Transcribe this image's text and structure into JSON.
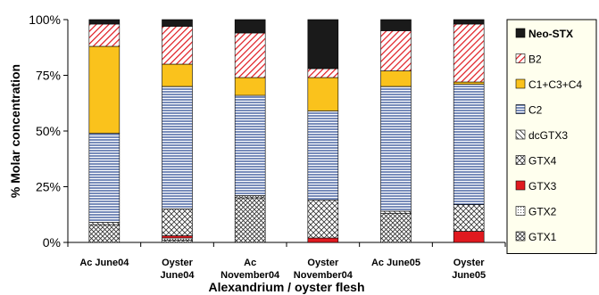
{
  "chart_data": {
    "type": "bar",
    "stacked": true,
    "xlabel": "Alexandrium / oyster flesh",
    "ylabel": "% Molar concentration",
    "ylim": [
      0,
      100
    ],
    "yticks": [
      "0%",
      "25%",
      "50%",
      "75%",
      "100%"
    ],
    "grid": false,
    "legend_position": "right",
    "categories": [
      [
        "Ac June04"
      ],
      [
        "Oyster",
        "June04"
      ],
      [
        "Ac",
        "November04"
      ],
      [
        "Oyster",
        "November04"
      ],
      [
        "Ac June05"
      ],
      [
        "Oyster",
        "June05"
      ]
    ],
    "series": [
      {
        "name": "GTX1",
        "pattern": "crosshatch-dense",
        "color": "#000000",
        "values": [
          8,
          1,
          20,
          0,
          13,
          0
        ]
      },
      {
        "name": "GTX2",
        "pattern": "dots",
        "color": "#000000",
        "values": [
          0,
          1,
          0,
          0,
          0,
          0
        ]
      },
      {
        "name": "GTX3",
        "pattern": "solid",
        "color": "#e0191f",
        "values": [
          0,
          1,
          0,
          2,
          0,
          5
        ]
      },
      {
        "name": "GTX4",
        "pattern": "crosshatch",
        "color": "#000000",
        "values": [
          0,
          12,
          1,
          17,
          0,
          12
        ]
      },
      {
        "name": "dcGTX3",
        "pattern": "diagonal",
        "color": "#000000",
        "values": [
          1,
          0,
          0,
          0,
          1,
          0
        ]
      },
      {
        "name": "C2",
        "pattern": "horizontal-lines",
        "color": "#1f3f8c",
        "values": [
          40,
          55,
          45,
          40,
          56,
          54
        ]
      },
      {
        "name": "C1+C3+C4",
        "pattern": "solid",
        "color": "#fac21c",
        "values": [
          39,
          10,
          8,
          15,
          7,
          1
        ]
      },
      {
        "name": "B2",
        "pattern": "diagonal-red",
        "color": "#e0191f",
        "values": [
          10,
          17,
          20,
          4,
          18,
          26
        ]
      },
      {
        "name": "Neo-STX",
        "pattern": "solid",
        "color": "#1a1a1a",
        "values": [
          2,
          3,
          6,
          22,
          5,
          2
        ]
      }
    ]
  }
}
